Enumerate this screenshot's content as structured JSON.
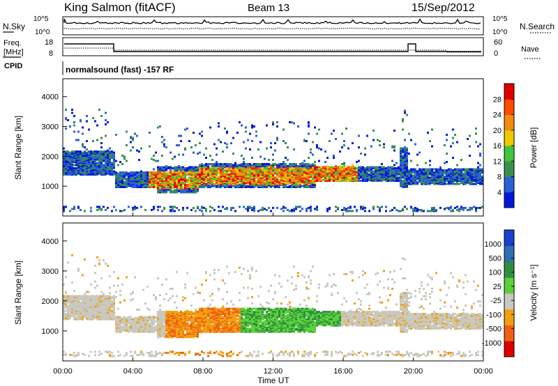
{
  "header": {
    "station": "King Salmon (fitACF)",
    "beam": "Beam 13",
    "date": "15/Sep/2012"
  },
  "status_panel": {
    "left_top": "N.Sky",
    "left_mid1": "Freq.",
    "left_mid2": "[MHz]",
    "left_bot": "CPID",
    "right_top": "N.Search",
    "right_mid": "Nave",
    "sky_ticks": [
      "10^5",
      "10^0"
    ],
    "search_ticks": [
      "10^5",
      "10^0"
    ],
    "freq_ticks": [
      "18",
      "8"
    ],
    "nave_ticks": [
      "60",
      "0"
    ],
    "cpid_text": "normalsound (fast) -157 RF"
  },
  "colors": {
    "power_scale": [
      "#0018d8",
      "#2a5fd6",
      "#3b8f4a",
      "#3fc43f",
      "#f0c800",
      "#f08c10",
      "#ff4a00",
      "#e00000"
    ],
    "velocity_scale": [
      "#1a3fd0",
      "#2f6fb0",
      "#2f8f3f",
      "#5ad03a",
      "#c8c8c0",
      "#f0a010",
      "#f06010",
      "#e00000"
    ]
  },
  "chart_data": [
    {
      "type": "heatmap",
      "title": "",
      "ylabel": "Slant Range [km]",
      "xlabel": "",
      "y_ticks": [
        "4000",
        "3000",
        "2000",
        "1000"
      ],
      "ylim": [
        0,
        4600
      ],
      "x_ticks": [],
      "colorbar": {
        "label": "Power [dB]",
        "ticks": [
          "28",
          "24",
          "20",
          "16",
          "12",
          "8",
          "4"
        ]
      }
    },
    {
      "type": "heatmap",
      "title": "",
      "ylabel": "Slant Range [km]",
      "xlabel": "Time UT",
      "y_ticks": [
        "4000",
        "3000",
        "2000",
        "1000"
      ],
      "ylim": [
        0,
        4600
      ],
      "x_ticks": [
        "00:00",
        "04:00",
        "08:00",
        "12:00",
        "16:00",
        "20:00",
        "00:00"
      ],
      "colorbar": {
        "label": "Velocity [m s⁻¹]",
        "ticks": [
          "1000",
          "500",
          "100",
          "25",
          "-25",
          "-100",
          "-500",
          "-1000"
        ]
      }
    }
  ]
}
